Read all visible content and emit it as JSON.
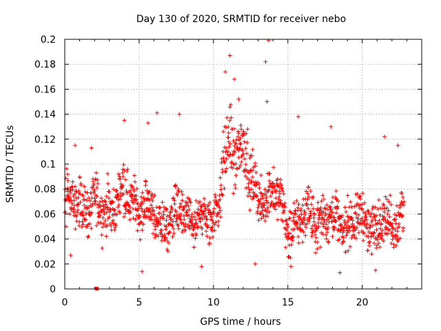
{
  "chart_data": {
    "type": "scatter",
    "title": "Day 130 of 2020, SRMTID for receiver nebo",
    "xlabel": "GPS time / hours",
    "ylabel": "SRMTID / TECUs",
    "xlim": [
      0,
      24
    ],
    "ylim": [
      0,
      0.2
    ],
    "x_ticks": [
      0,
      5,
      10,
      15,
      20
    ],
    "x_tick_labels": [
      "0",
      "5",
      "10",
      "15",
      "20"
    ],
    "y_ticks": [
      0,
      0.02,
      0.04,
      0.06,
      0.08,
      0.1,
      0.12,
      0.14,
      0.16,
      0.18,
      0.2
    ],
    "y_tick_labels": [
      "0",
      "0.02",
      "0.04",
      "0.06",
      "0.08",
      "0.1",
      "0.12",
      "0.14",
      "0.16",
      "0.18",
      "0.2"
    ],
    "grid": true,
    "marker": "+",
    "color": "#ff0000",
    "x_range_hours": [
      0,
      22.8
    ],
    "trend": [
      {
        "x": 0,
        "y": 0.068
      },
      {
        "x": 1,
        "y": 0.07
      },
      {
        "x": 2,
        "y": 0.066
      },
      {
        "x": 3,
        "y": 0.064
      },
      {
        "x": 4,
        "y": 0.078
      },
      {
        "x": 5,
        "y": 0.068
      },
      {
        "x": 6,
        "y": 0.058
      },
      {
        "x": 7,
        "y": 0.052
      },
      {
        "x": 8,
        "y": 0.062
      },
      {
        "x": 9,
        "y": 0.05
      },
      {
        "x": 10,
        "y": 0.06
      },
      {
        "x": 11,
        "y": 0.09
      },
      {
        "x": 12,
        "y": 0.098
      },
      {
        "x": 13,
        "y": 0.072
      },
      {
        "x": 14,
        "y": 0.08
      },
      {
        "x": 15,
        "y": 0.05
      },
      {
        "x": 16,
        "y": 0.056
      },
      {
        "x": 17,
        "y": 0.058
      },
      {
        "x": 18,
        "y": 0.056
      },
      {
        "x": 19,
        "y": 0.052
      },
      {
        "x": 20,
        "y": 0.056
      },
      {
        "x": 21,
        "y": 0.05
      },
      {
        "x": 22,
        "y": 0.056
      },
      {
        "x": 22.8,
        "y": 0.058
      }
    ],
    "peaks": [
      {
        "x": 0.7,
        "y": 0.115
      },
      {
        "x": 1.8,
        "y": 0.113
      },
      {
        "x": 4.0,
        "y": 0.135
      },
      {
        "x": 5.6,
        "y": 0.133
      },
      {
        "x": 6.2,
        "y": 0.141
      },
      {
        "x": 7.7,
        "y": 0.14
      },
      {
        "x": 10.8,
        "y": 0.174
      },
      {
        "x": 11.1,
        "y": 0.187
      },
      {
        "x": 11.4,
        "y": 0.168
      },
      {
        "x": 11.7,
        "y": 0.152
      },
      {
        "x": 13.5,
        "y": 0.182
      },
      {
        "x": 13.7,
        "y": 0.199
      },
      {
        "x": 13.6,
        "y": 0.15
      },
      {
        "x": 15.7,
        "y": 0.138
      },
      {
        "x": 17.9,
        "y": 0.13
      },
      {
        "x": 21.5,
        "y": 0.122
      },
      {
        "x": 22.4,
        "y": 0.115
      }
    ],
    "troughs": [
      {
        "x": 0.4,
        "y": 0.027
      },
      {
        "x": 5.2,
        "y": 0.014
      },
      {
        "x": 9.2,
        "y": 0.018
      },
      {
        "x": 12.8,
        "y": 0.02
      },
      {
        "x": 15.2,
        "y": 0.018
      },
      {
        "x": 18.5,
        "y": 0.013
      },
      {
        "x": 20.9,
        "y": 0.015
      }
    ],
    "extra_markers": [
      {
        "x": 2.15,
        "y": 0.0,
        "shape": "square",
        "color": "#ff0000"
      }
    ]
  }
}
